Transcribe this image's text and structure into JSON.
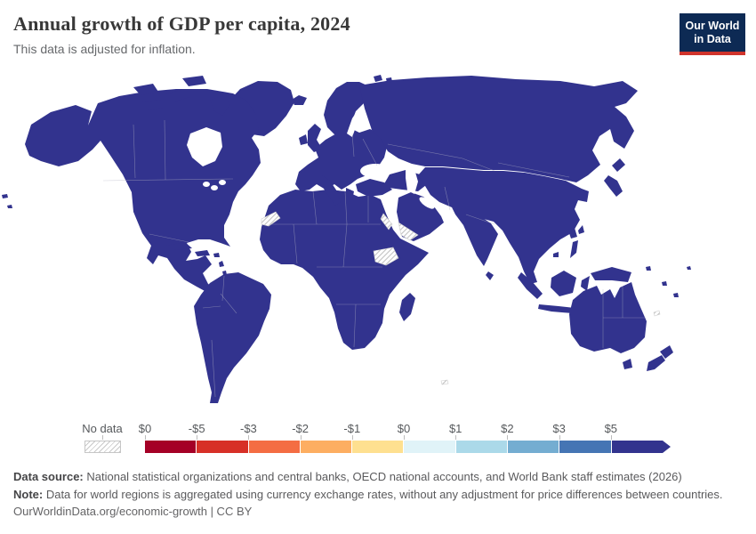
{
  "header": {
    "title": "Annual growth of GDP per capita, 2024",
    "subtitle": "This data is adjusted for inflation.",
    "logo": {
      "line1": "Our World",
      "line2": "in Data",
      "bg_color": "#0d2a54",
      "accent_color": "#d0342c"
    }
  },
  "legend": {
    "no_data_label": "No data",
    "ticks": [
      "$0",
      "-$5",
      "-$3",
      "-$2",
      "-$1",
      "$0",
      "$1",
      "$2",
      "$3",
      "$5"
    ],
    "colors": [
      "#a50026",
      "#d73027",
      "#f46d43",
      "#fdae61",
      "#fee090",
      "#e0f3f8",
      "#abd9e9",
      "#74add1",
      "#4575b4",
      "#32338e"
    ]
  },
  "footer": {
    "data_source_label": "Data source:",
    "data_source_text": " National statistical organizations and central banks, OECD national accounts, and World Bank staff estimates (2026)",
    "note_label": "Note:",
    "note_text": " Data for world regions is aggregated using currency exchange rates, without any adjustment for price differences between countries.",
    "credit_line": "OurWorldinData.org/economic-growth | CC BY"
  },
  "chart_data": {
    "type": "heatmap",
    "subtype": "world-choropleth-map",
    "title": "Annual growth of GDP per capita, 2024",
    "subtitle": "This data is adjusted for inflation.",
    "unit": "US dollars",
    "legend_position": "bottom",
    "map_fill": "#32338e",
    "tick_labels": [
      "$0",
      "-$5",
      "-$3",
      "-$2",
      "-$1",
      "$0",
      "$1",
      "$2",
      "$3",
      "$5"
    ],
    "bin_colors": [
      "#a50026",
      "#d73027",
      "#f46d43",
      "#fdae61",
      "#fee090",
      "#e0f3f8",
      "#abd9e9",
      "#74add1",
      "#4575b4",
      "#32338e"
    ],
    "open_ended_top_bin": true,
    "values_depicted": "All countries with data are shaded in the darkest blue top bin (>= $5 growth)",
    "no_data_style": "diagonal hatch",
    "no_data_regions_visible": [
      "Western Sahara",
      "Eritrea",
      "Yemen",
      "South Sudan",
      "New Caledonia",
      "French Southern Territories"
    ]
  }
}
